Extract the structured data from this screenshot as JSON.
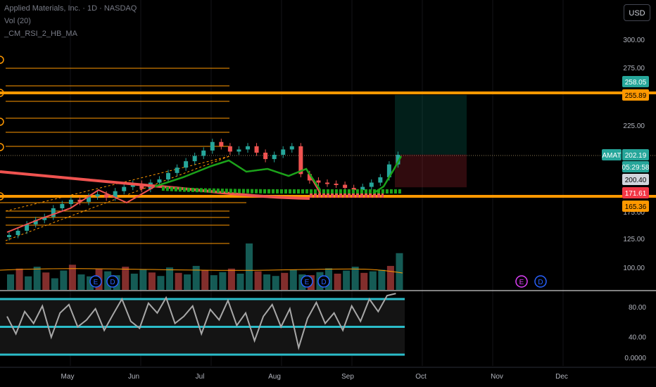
{
  "header": {
    "symbol_line": "Applied Materials, Inc. · 1D · NASDAQ",
    "indicator_1": "Vol (20)",
    "indicator_2": "_CM_RSI_2_HB_MA",
    "currency_button": "USD"
  },
  "price_axis": {
    "ticks": [
      "300.00",
      "275.00",
      "225.00",
      "175.00",
      "125.00",
      "100.00"
    ],
    "price_tags": [
      {
        "text": "258.05",
        "bg": "#26a69a",
        "fg": "#ffffff"
      },
      {
        "text": "255.89",
        "bg": "#ff9800",
        "fg": "#000000"
      },
      {
        "text": "202.19",
        "bg": "#26a69a",
        "fg": "#ffffff"
      },
      {
        "text": "05:29:58",
        "bg": "#26a69a",
        "fg": "#ffffff"
      },
      {
        "text": "200.40",
        "bg": "#d1d4dc",
        "fg": "#000000"
      },
      {
        "text": "171.61",
        "bg": "#f23645",
        "fg": "#ffffff"
      },
      {
        "text": "165.36",
        "bg": "#ff9800",
        "fg": "#000000"
      }
    ],
    "symbol_tag": "AMAT"
  },
  "rsi_axis": {
    "ticks": [
      "80.00",
      "40.00",
      "0.0000"
    ]
  },
  "time_axis": {
    "labels": [
      "May",
      "Jun",
      "Jul",
      "Aug",
      "Sep",
      "Oct",
      "Nov",
      "Dec"
    ]
  },
  "event_markers": [
    {
      "glyph": "E",
      "color": "#2962ff"
    },
    {
      "glyph": "D",
      "color": "#2962ff"
    },
    {
      "glyph": "E",
      "color": "#2962ff"
    },
    {
      "glyph": "D",
      "color": "#2962ff"
    },
    {
      "glyph": "E",
      "color": "#e040fb"
    },
    {
      "glyph": "D",
      "color": "#2962ff"
    }
  ],
  "colors": {
    "up": "#26a69a",
    "down": "#ef5350",
    "orange": "#ff9800",
    "ma_green": "#1aa31a",
    "rsi_band": "#2bbcc9"
  },
  "chart_data": {
    "type": "candlestick",
    "symbol": "AMAT",
    "interval": "1D",
    "months": [
      "May",
      "Jun",
      "Jul",
      "Aug",
      "Sep",
      "Oct",
      "Nov",
      "Dec"
    ],
    "close_trend": [
      127,
      131,
      137,
      141,
      144,
      152,
      156,
      160,
      158,
      163,
      165,
      162,
      168,
      172,
      175,
      170,
      176,
      179,
      185,
      190,
      196,
      201,
      206,
      214,
      210,
      205,
      207,
      210,
      204,
      198,
      202,
      207,
      210,
      184,
      178,
      176,
      175,
      174,
      171,
      169,
      172,
      176,
      181,
      193,
      202
    ],
    "last_price": 202.19,
    "countdown": "05:29:58",
    "horizontal_levels": [
      258.05,
      255.89,
      200.4,
      171.61,
      165.36
    ],
    "position_box": {
      "target": 258.05,
      "entry": 202.19,
      "stop": 171.61
    },
    "rsi_bands": [
      80,
      40,
      0
    ],
    "rsi_values": [
      55,
      30,
      62,
      45,
      70,
      25,
      60,
      72,
      40,
      50,
      66,
      35,
      58,
      80,
      48,
      38,
      74,
      60,
      82,
      45,
      55,
      70,
      30,
      65,
      50,
      78,
      42,
      60,
      20,
      55,
      72,
      40,
      66,
      10,
      52,
      75,
      45,
      60,
      35,
      70,
      48,
      80,
      62,
      85,
      88
    ],
    "volume": [
      40,
      55,
      35,
      60,
      45,
      30,
      50,
      65,
      40,
      35,
      55,
      48,
      38,
      60,
      42,
      52,
      45,
      36,
      58,
      44,
      40,
      62,
      50,
      38,
      46,
      55,
      42,
      120,
      48,
      40,
      36,
      44,
      52,
      40,
      38,
      46,
      56,
      42,
      50,
      60,
      44,
      48,
      52,
      62,
      95
    ]
  }
}
